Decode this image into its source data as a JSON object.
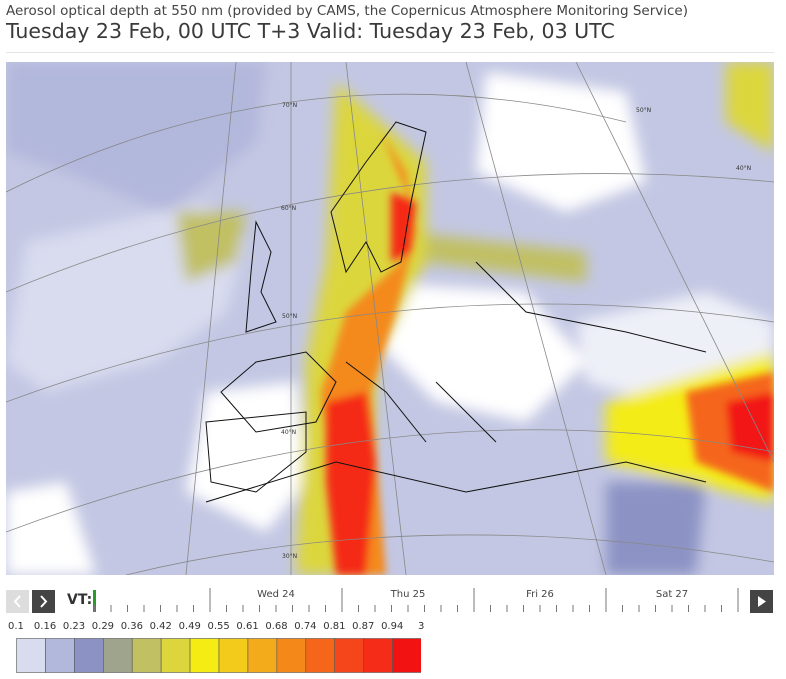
{
  "header": {
    "title": "Aerosol optical depth at 550 nm (provided by CAMS, the Copernicus Atmosphere Monitoring Service)",
    "subtitle": "Tuesday 23 Feb, 00 UTC T+3 Valid: Tuesday 23 Feb, 03 UTC"
  },
  "map": {
    "labels": [
      "70°N",
      "60°N",
      "50°N",
      "40°N",
      "30°N",
      "50°N",
      "40°N"
    ]
  },
  "timeline": {
    "label": "VT:",
    "days": [
      "Wed 24",
      "Thu 25",
      "Fri 26",
      "Sat 27"
    ]
  },
  "legend": {
    "labels": [
      "0.1",
      "0.16",
      "0.23",
      "0.29",
      "0.36",
      "0.42",
      "0.49",
      "0.55",
      "0.61",
      "0.68",
      "0.74",
      "0.81",
      "0.87",
      "0.94",
      "3"
    ],
    "colors": [
      "#d9dcef",
      "#b2b7dc",
      "#8c93c4",
      "#9ea58c",
      "#c1c063",
      "#dcd63c",
      "#f4ec12",
      "#f3cb1a",
      "#f3ab1b",
      "#f4891a",
      "#f5661a",
      "#f4461a",
      "#f42c18",
      "#f21212"
    ]
  }
}
